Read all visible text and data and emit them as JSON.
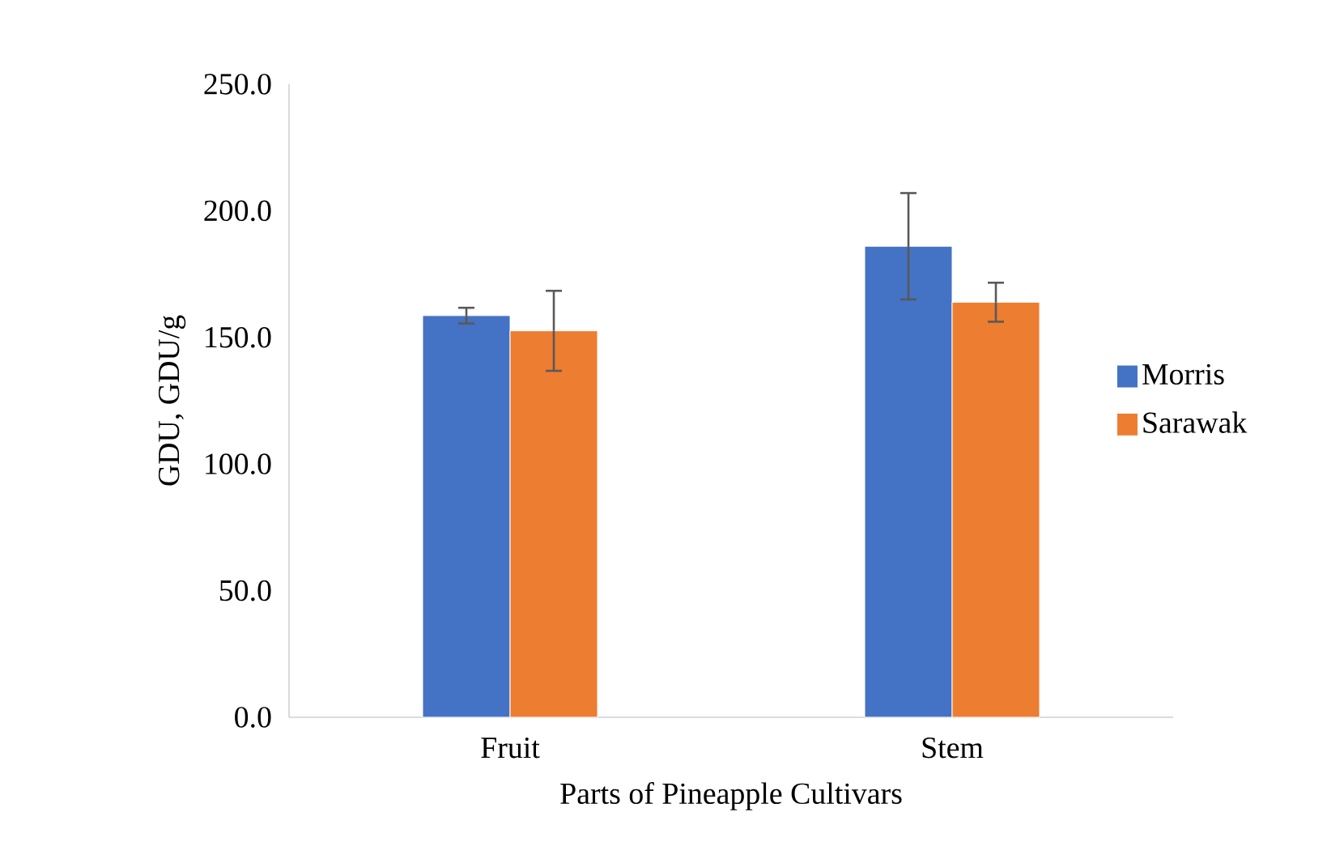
{
  "chart_data": {
    "type": "bar",
    "xlabel": "Parts of Pineapple Cultivars",
    "ylabel": "GDU, GDU/g",
    "categories": [
      "Fruit",
      "Stem"
    ],
    "series": [
      {
        "name": "Morris",
        "color": "#4472c4",
        "values": [
          158.6,
          186.0
        ],
        "errors": [
          3.1,
          21.0
        ]
      },
      {
        "name": "Sarawak",
        "color": "#ed7d31",
        "values": [
          152.6,
          163.9
        ],
        "errors": [
          15.8,
          7.7
        ]
      }
    ],
    "ylim": [
      0,
      250
    ],
    "yticks": [
      {
        "value": 0,
        "label": "0.0"
      },
      {
        "value": 50,
        "label": "50.0"
      },
      {
        "value": 100,
        "label": "100.0"
      },
      {
        "value": 150,
        "label": "150.0"
      },
      {
        "value": 200,
        "label": "200.0"
      },
      {
        "value": 250,
        "label": "250.0"
      }
    ],
    "legend": "right"
  }
}
